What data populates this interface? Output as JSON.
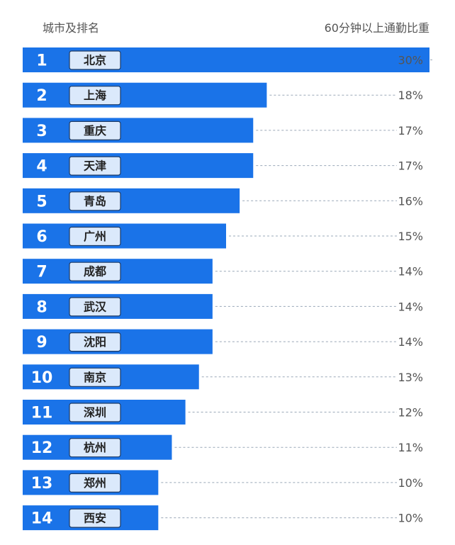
{
  "header": {
    "left": "城市及排名",
    "right": "60分钟以上通勤比重"
  },
  "colors": {
    "bar": "#1a73e8",
    "label_box": "#dbe9fb",
    "label_border": "#1d3b66",
    "dots": "#9aa8b8"
  },
  "chart_data": {
    "type": "bar",
    "orientation": "horizontal",
    "categories": [
      "北京",
      "上海",
      "重庆",
      "天津",
      "青岛",
      "广州",
      "成都",
      "武汉",
      "沈阳",
      "南京",
      "深圳",
      "杭州",
      "郑州",
      "西安"
    ],
    "ranks": [
      "1",
      "2",
      "3",
      "4",
      "5",
      "6",
      "7",
      "8",
      "9",
      "10",
      "11",
      "12",
      "13",
      "14"
    ],
    "values": [
      30,
      18,
      17,
      17,
      16,
      15,
      14,
      14,
      14,
      13,
      12,
      11,
      10,
      10
    ],
    "value_labels": [
      "30%",
      "18%",
      "17%",
      "17%",
      "16%",
      "15%",
      "14%",
      "14%",
      "14%",
      "13%",
      "12%",
      "11%",
      "10%",
      "10%"
    ],
    "xlim": [
      0,
      30
    ]
  }
}
